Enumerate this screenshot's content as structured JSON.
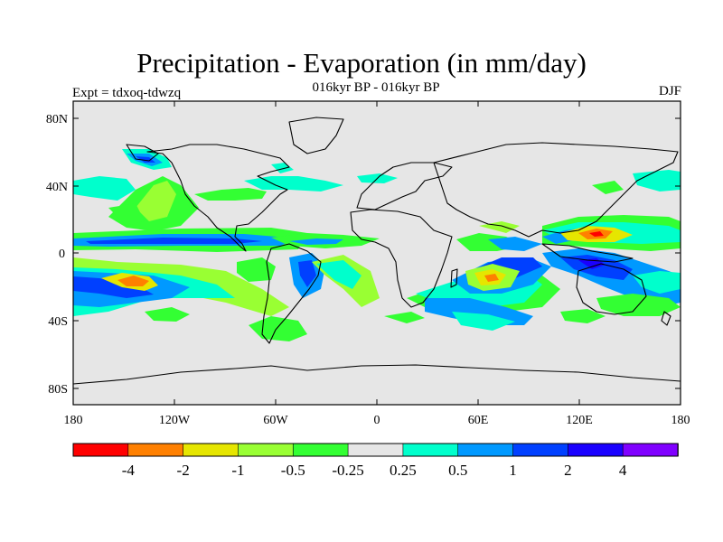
{
  "figure": {
    "title": "Precipitation - Evaporation (in mm/day)",
    "subtitle": "016kyr BP - 016kyr BP",
    "expt_label": "Expt = tdxoq-tdwzq",
    "season": "DJF"
  },
  "map": {
    "lat_ticks": [
      "80N",
      "40N",
      "0",
      "40S",
      "80S"
    ],
    "lon_ticks": [
      "180",
      "120W",
      "60W",
      "0",
      "60E",
      "120E",
      "180"
    ],
    "background_color": "#e6e6e6"
  },
  "colorbar": {
    "colors": [
      "#ff0000",
      "#ff8000",
      "#e6e600",
      "#99ff33",
      "#33ff33",
      "#e6e6e6",
      "#00ffcc",
      "#0099ff",
      "#0040ff",
      "#1a00ff",
      "#8000ff"
    ],
    "labels": [
      "-4",
      "-2",
      "-1",
      "-0.5",
      "-0.25",
      "0.25",
      "0.5",
      "1",
      "2",
      "4"
    ]
  }
}
